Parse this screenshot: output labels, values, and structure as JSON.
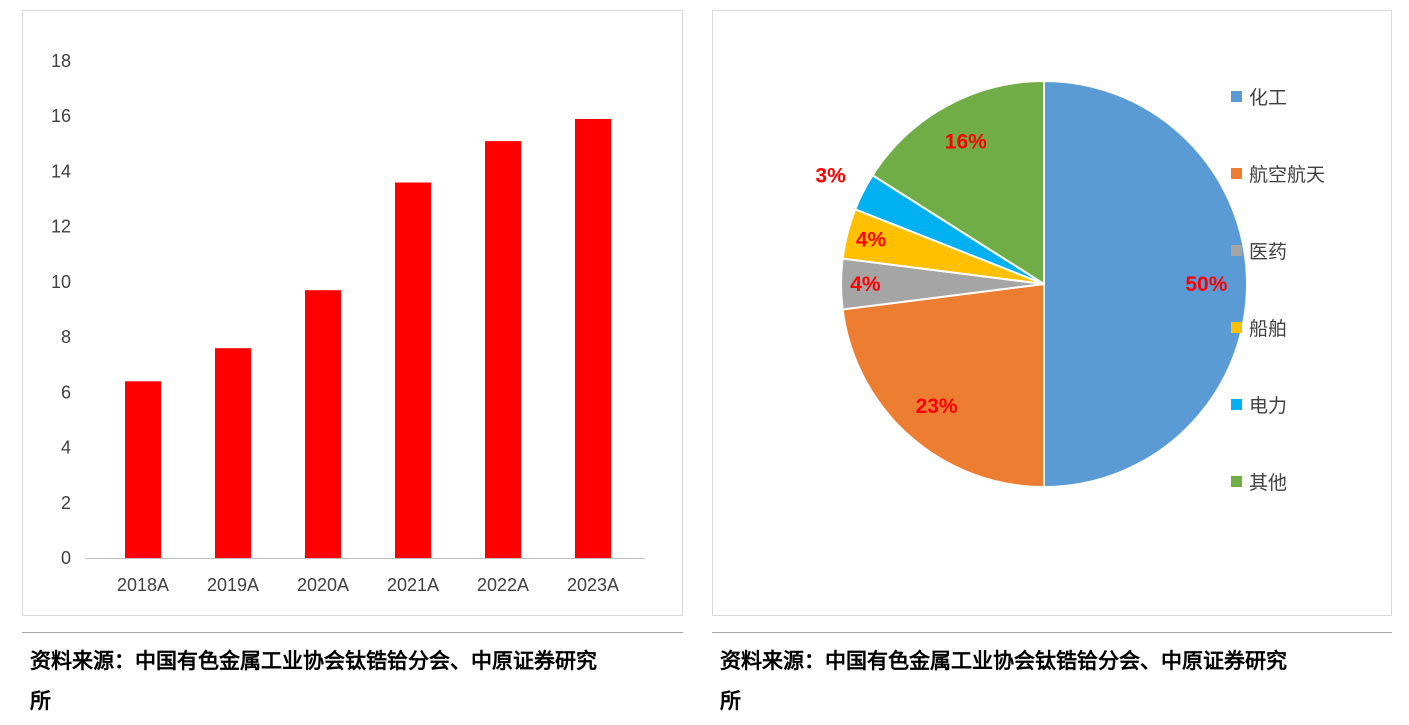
{
  "panels": {
    "left": {
      "source_line1": "资料来源：中国有色金属工业协会钛锆铪分会、中原证券研究",
      "source_line2": "所"
    },
    "right": {
      "source_line1": "资料来源：中国有色金属工业协会钛锆铪分会、中原证券研究",
      "source_line2": "所"
    }
  },
  "chart_data": [
    {
      "type": "bar",
      "categories": [
        "2018A",
        "2019A",
        "2020A",
        "2021A",
        "2022A",
        "2023A"
      ],
      "values": [
        6.4,
        7.6,
        9.7,
        13.6,
        15.1,
        15.9
      ],
      "title": "",
      "xlabel": "",
      "ylabel": "",
      "ylim": [
        0,
        18
      ],
      "ytick_step": 2,
      "grid": false,
      "bar_color": "#FF0000",
      "tick_color": "#404040",
      "axis_line_color": "#BFBFBF"
    },
    {
      "type": "pie",
      "labels": [
        "化工",
        "航空航天",
        "医药",
        "船舶",
        "电力",
        "其他"
      ],
      "values": [
        50,
        23,
        4,
        4,
        3,
        16
      ],
      "percent_labels": [
        "50%",
        "23%",
        "4%",
        "4%",
        "3%",
        "16%"
      ],
      "colors": [
        "#5B9BD5",
        "#ED7D31",
        "#A5A5A5",
        "#FFC000",
        "#00B0F0",
        "#70AD47"
      ],
      "percent_label_color": "#FF0000",
      "legend_text_color": "#404040",
      "legend_position": "right",
      "start_angle_deg": 0,
      "direction": "clockwise",
      "title": ""
    }
  ]
}
